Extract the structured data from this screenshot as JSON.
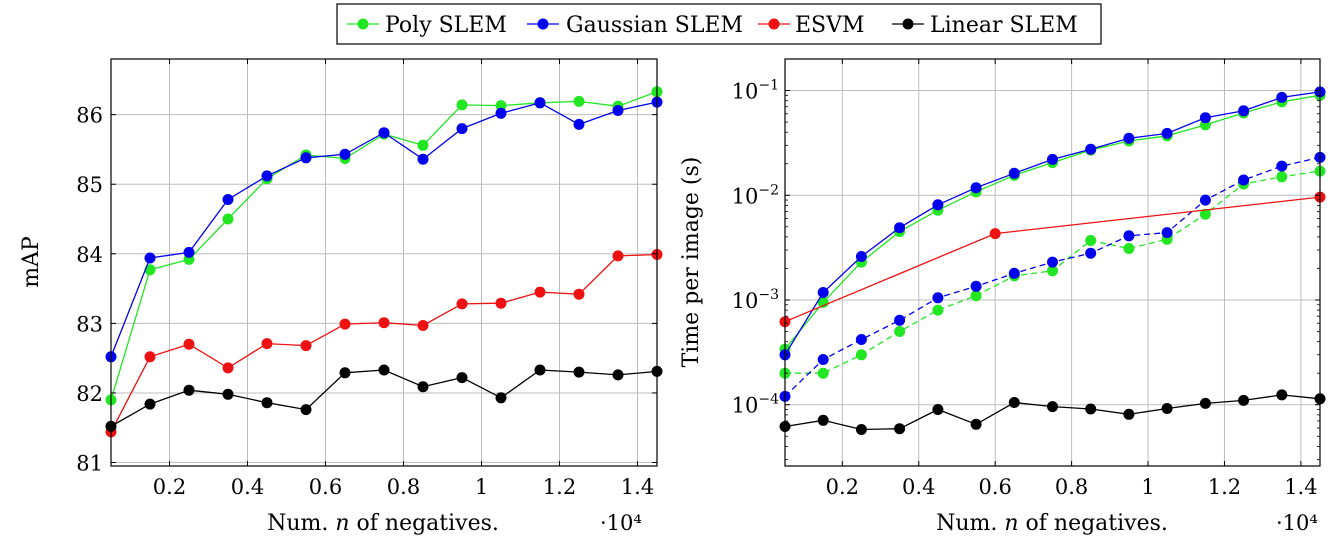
{
  "legend": {
    "placement": "top-center",
    "entries": [
      {
        "name": "Poly SLEM",
        "color": "#22e622"
      },
      {
        "name": "Gaussian SLEM",
        "color": "#0000ee"
      },
      {
        "name": "ESVM",
        "color": "#ee1111"
      },
      {
        "name": "Linear SLEM",
        "color": "#000000"
      }
    ]
  },
  "chart_data": [
    {
      "type": "line",
      "title": "",
      "xlabel": "Num. n of negatives.",
      "ylabel": "mAP",
      "x_multiplier_label": "·10⁴",
      "xlim": [
        0.05,
        1.45
      ],
      "ylim": [
        80.95,
        86.8
      ],
      "xticks": [
        0.2,
        0.4,
        0.6,
        0.8,
        1,
        1.2,
        1.4
      ],
      "xtick_labels": [
        "0.2",
        "0.4",
        "0.6",
        "0.8",
        "1",
        "1.2",
        "1.4"
      ],
      "yticks": [
        81,
        82,
        83,
        84,
        85,
        86
      ],
      "ytick_labels": [
        "81",
        "82",
        "83",
        "84",
        "85",
        "86"
      ],
      "grid": true,
      "scale": "linear",
      "series": [
        {
          "name": "Poly SLEM",
          "color": "#22e622",
          "dash": "solid",
          "x": [
            0.05,
            0.15,
            0.25,
            0.35,
            0.45,
            0.55,
            0.65,
            0.75,
            0.85,
            0.95,
            1.05,
            1.15,
            1.25,
            1.35,
            1.45
          ],
          "values": [
            81.9,
            83.77,
            83.92,
            84.5,
            85.08,
            85.42,
            85.37,
            85.72,
            85.56,
            86.14,
            86.13,
            86.17,
            86.19,
            86.12,
            86.33
          ]
        },
        {
          "name": "Gaussian SLEM",
          "color": "#0000ee",
          "dash": "solid",
          "x": [
            0.05,
            0.15,
            0.25,
            0.35,
            0.45,
            0.55,
            0.65,
            0.75,
            0.85,
            0.95,
            1.05,
            1.15,
            1.25,
            1.35,
            1.45
          ],
          "values": [
            82.52,
            83.94,
            84.02,
            84.78,
            85.12,
            85.38,
            85.43,
            85.74,
            85.36,
            85.8,
            86.02,
            86.17,
            85.86,
            86.06,
            86.18
          ]
        },
        {
          "name": "ESVM",
          "color": "#ee1111",
          "dash": "solid",
          "x": [
            0.05,
            0.15,
            0.25,
            0.35,
            0.45,
            0.55,
            0.65,
            0.75,
            0.85,
            0.95,
            1.05,
            1.15,
            1.25,
            1.35,
            1.45
          ],
          "values": [
            81.44,
            82.52,
            82.7,
            82.36,
            82.71,
            82.68,
            82.99,
            83.01,
            82.97,
            83.28,
            83.29,
            83.45,
            83.42,
            83.97,
            83.99
          ]
        },
        {
          "name": "Linear SLEM",
          "color": "#000000",
          "dash": "solid",
          "x": [
            0.05,
            0.15,
            0.25,
            0.35,
            0.45,
            0.55,
            0.65,
            0.75,
            0.85,
            0.95,
            1.05,
            1.15,
            1.25,
            1.35,
            1.45
          ],
          "values": [
            81.52,
            81.84,
            82.04,
            81.98,
            81.86,
            81.76,
            82.29,
            82.33,
            82.09,
            82.22,
            81.93,
            82.33,
            82.3,
            82.26,
            82.31
          ]
        }
      ]
    },
    {
      "type": "line",
      "title": "",
      "xlabel": "Num. n of negatives.",
      "ylabel": "Time per image (s)",
      "x_multiplier_label": "·10⁴",
      "xlim": [
        0.05,
        1.45
      ],
      "ylim": [
        2.6e-05,
        0.2
      ],
      "xticks": [
        0.2,
        0.4,
        0.6,
        0.8,
        1,
        1.2,
        1.4
      ],
      "xtick_labels": [
        "0.2",
        "0.4",
        "0.6",
        "0.8",
        "1",
        "1.2",
        "1.4"
      ],
      "yticks": [
        0.0001,
        0.001,
        0.01,
        0.1
      ],
      "ytick_labels": [
        "10",
        "10",
        "10",
        "10"
      ],
      "ytick_exponents": [
        "−4",
        "−3",
        "−2",
        "−1"
      ],
      "grid": true,
      "scale": "log",
      "series": [
        {
          "name": "Poly SLEM",
          "color": "#22e622",
          "dash": "solid",
          "x": [
            0.05,
            0.15,
            0.25,
            0.35,
            0.45,
            0.55,
            0.65,
            0.75,
            0.85,
            0.95,
            1.05,
            1.15,
            1.25,
            1.35,
            1.45
          ],
          "values": [
            0.00034,
            0.00095,
            0.0023,
            0.0045,
            0.0072,
            0.0108,
            0.0155,
            0.0205,
            0.027,
            0.033,
            0.037,
            0.047,
            0.061,
            0.078,
            0.09
          ]
        },
        {
          "name": "Gaussian SLEM",
          "color": "#0000ee",
          "dash": "solid",
          "x": [
            0.05,
            0.15,
            0.25,
            0.35,
            0.45,
            0.55,
            0.65,
            0.75,
            0.85,
            0.95,
            1.05,
            1.15,
            1.25,
            1.35,
            1.45
          ],
          "values": [
            0.0003,
            0.00118,
            0.0026,
            0.0049,
            0.0081,
            0.0118,
            0.0162,
            0.022,
            0.0275,
            0.035,
            0.039,
            0.055,
            0.064,
            0.086,
            0.097
          ]
        },
        {
          "name": "Poly SLEM (dashed)",
          "color": "#22e622",
          "dash": "dashed",
          "x": [
            0.05,
            0.15,
            0.25,
            0.35,
            0.45,
            0.55,
            0.65,
            0.75,
            0.85,
            0.95,
            1.05,
            1.15,
            1.25,
            1.35,
            1.45
          ],
          "values": [
            0.0002,
            0.0002,
            0.0003,
            0.0005,
            0.0008,
            0.0011,
            0.0017,
            0.0019,
            0.0037,
            0.0031,
            0.0038,
            0.0066,
            0.0128,
            0.015,
            0.017
          ]
        },
        {
          "name": "Gaussian SLEM (dashed)",
          "color": "#0000ee",
          "dash": "dashed",
          "x": [
            0.05,
            0.15,
            0.25,
            0.35,
            0.45,
            0.55,
            0.65,
            0.75,
            0.85,
            0.95,
            1.05,
            1.15,
            1.25,
            1.35,
            1.45
          ],
          "values": [
            0.00012,
            0.00027,
            0.00042,
            0.00064,
            0.00105,
            0.00135,
            0.0018,
            0.0023,
            0.0028,
            0.0041,
            0.0044,
            0.009,
            0.014,
            0.019,
            0.023
          ]
        },
        {
          "name": "ESVM",
          "color": "#ee1111",
          "dash": "solid",
          "x": [
            0.05,
            0.6,
            1.45
          ],
          "values": [
            0.00062,
            0.0043,
            0.0096
          ]
        },
        {
          "name": "Linear SLEM",
          "color": "#000000",
          "dash": "solid",
          "x": [
            0.05,
            0.15,
            0.25,
            0.35,
            0.45,
            0.55,
            0.65,
            0.75,
            0.85,
            0.95,
            1.05,
            1.15,
            1.25,
            1.35,
            1.45
          ],
          "values": [
            6.2e-05,
            7.1e-05,
            5.8e-05,
            5.9e-05,
            9e-05,
            6.5e-05,
            0.000105,
            9.6e-05,
            9.1e-05,
            8.1e-05,
            9.2e-05,
            0.000103,
            0.00011,
            0.000124,
            0.000114
          ]
        }
      ]
    }
  ]
}
